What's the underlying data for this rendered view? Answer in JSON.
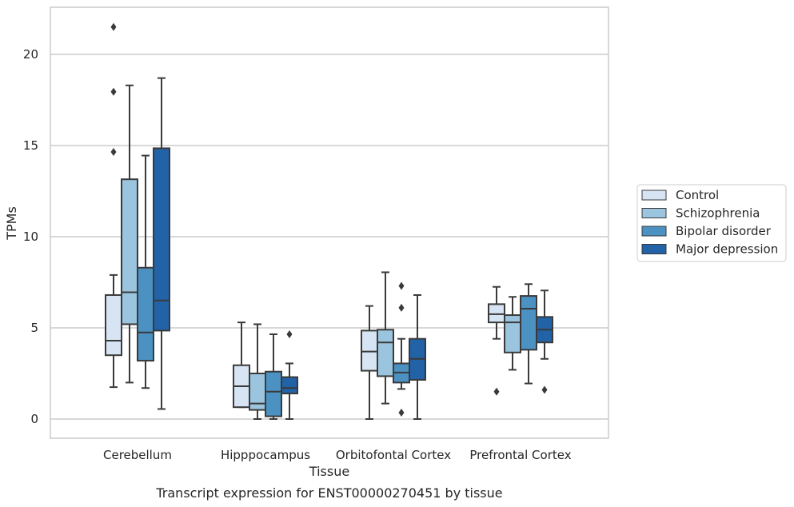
{
  "chart_data": {
    "type": "box",
    "title": "Transcript expression for ENST00000270451 by tissue",
    "xlabel": "Tissue",
    "ylabel": "TPMs",
    "ylim": [
      -1,
      22.6
    ],
    "yticks": [
      0,
      5,
      10,
      15,
      20
    ],
    "grid": "horizontal",
    "legend_position": "right",
    "categories": [
      "Cerebellum",
      "Hipppocampus",
      "Orbitofontal Cortex",
      "Prefrontal Cortex"
    ],
    "series": [
      {
        "name": "Control",
        "color": "#d6e4f3",
        "boxes": [
          {
            "min": 1.75,
            "q1": 3.5,
            "median": 4.3,
            "q3": 6.8,
            "max": 7.9,
            "outliers": [
              21.5,
              17.95,
              14.65
            ]
          },
          {
            "min": 0.65,
            "q1": 0.65,
            "median": 1.8,
            "q3": 2.95,
            "max": 5.3,
            "outliers": []
          },
          {
            "min": 0.0,
            "q1": 2.65,
            "median": 3.7,
            "q3": 4.85,
            "max": 6.2,
            "outliers": []
          },
          {
            "min": 4.4,
            "q1": 5.3,
            "median": 5.75,
            "q3": 6.3,
            "max": 7.25,
            "outliers": [
              1.5
            ]
          }
        ]
      },
      {
        "name": "Schizophrenia",
        "color": "#9bc4de",
        "boxes": [
          {
            "min": 2.0,
            "q1": 5.2,
            "median": 6.95,
            "q3": 13.15,
            "max": 18.3,
            "outliers": []
          },
          {
            "min": 0.0,
            "q1": 0.5,
            "median": 0.85,
            "q3": 2.5,
            "max": 5.2,
            "outliers": []
          },
          {
            "min": 0.85,
            "q1": 2.35,
            "median": 4.2,
            "q3": 4.9,
            "max": 8.05,
            "outliers": []
          },
          {
            "min": 2.7,
            "q1": 3.65,
            "median": 5.3,
            "q3": 5.7,
            "max": 6.7,
            "outliers": []
          }
        ]
      },
      {
        "name": "Bipolar disorder",
        "color": "#4b91c2",
        "boxes": [
          {
            "min": 1.7,
            "q1": 3.2,
            "median": 4.75,
            "q3": 8.3,
            "max": 14.45,
            "outliers": []
          },
          {
            "min": 0.0,
            "q1": 0.15,
            "median": 1.5,
            "q3": 2.6,
            "max": 4.65,
            "outliers": []
          },
          {
            "min": 1.65,
            "q1": 2.0,
            "median": 2.55,
            "q3": 3.05,
            "max": 4.4,
            "outliers": [
              7.3,
              6.1,
              0.35
            ]
          },
          {
            "min": 1.95,
            "q1": 3.8,
            "median": 6.05,
            "q3": 6.75,
            "max": 7.4,
            "outliers": []
          }
        ]
      },
      {
        "name": "Major depression",
        "color": "#2262a7",
        "boxes": [
          {
            "min": 0.55,
            "q1": 4.85,
            "median": 6.5,
            "q3": 14.85,
            "max": 18.7,
            "outliers": []
          },
          {
            "min": 0.0,
            "q1": 1.4,
            "median": 1.7,
            "q3": 2.3,
            "max": 3.05,
            "outliers": [
              4.65
            ]
          },
          {
            "min": 0.0,
            "q1": 2.15,
            "median": 3.3,
            "q3": 4.4,
            "max": 6.8,
            "outliers": []
          },
          {
            "min": 3.3,
            "q1": 4.2,
            "median": 4.9,
            "q3": 5.6,
            "max": 7.05,
            "outliers": [
              1.6
            ]
          }
        ]
      }
    ]
  }
}
